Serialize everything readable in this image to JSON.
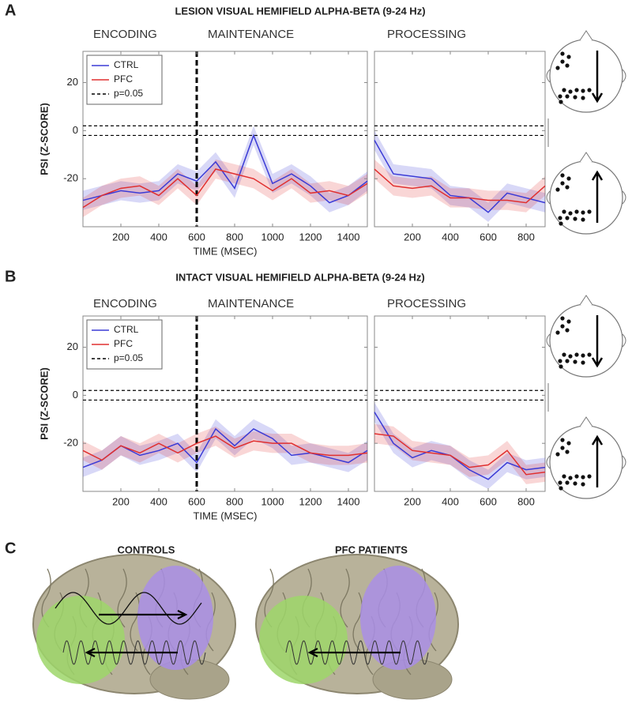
{
  "panel_labels": [
    "A",
    "B",
    "C"
  ],
  "chart_data": [
    {
      "type": "line",
      "title": "LESION VISUAL HEMIFIELD ALPHA-BETA (9-24 Hz)",
      "annotations": [
        "ENCODING",
        "MAINTENANCE"
      ],
      "ylabel": "PSI (Z-SCORE)",
      "xlabel": "TIME (MSEC)",
      "x": [
        0,
        100,
        200,
        300,
        400,
        500,
        600,
        700,
        800,
        900,
        1000,
        1100,
        1200,
        1300,
        1400,
        1500
      ],
      "series": [
        {
          "name": "CTRL",
          "color": "#3b3bd6",
          "band": 4,
          "values": [
            -29,
            -27,
            -25,
            -26,
            -25,
            -18,
            -21,
            -13,
            -24,
            -2,
            -22,
            -18,
            -23,
            -30,
            -27,
            -21
          ]
        },
        {
          "name": "PFC",
          "color": "#e03030",
          "band": 4,
          "values": [
            -32,
            -27,
            -24,
            -23,
            -27,
            -20,
            -27,
            -16,
            -18,
            -20,
            -25,
            -20,
            -26,
            -25,
            -27,
            -22
          ]
        }
      ],
      "hlines": {
        "name": "p=0.05",
        "values": [
          2,
          -2
        ]
      },
      "vline": 600,
      "legend": "upper left",
      "xlim": [
        0,
        1500
      ],
      "xticks": [
        200,
        400,
        600,
        800,
        1000,
        1200,
        1400
      ],
      "ylim": [
        -40,
        33
      ],
      "yticks": [
        -20,
        0,
        20
      ],
      "ytick_labels": true
    },
    {
      "type": "line",
      "annotations": [
        "PROCESSING"
      ],
      "x": [
        0,
        100,
        200,
        300,
        400,
        500,
        600,
        700,
        800,
        900
      ],
      "series": [
        {
          "color": "#3b3bd6",
          "band": 4,
          "values": [
            -4,
            -18,
            -19,
            -20,
            -27,
            -28,
            -34,
            -26,
            -28,
            -30
          ]
        },
        {
          "color": "#e03030",
          "band": 4,
          "values": [
            -16,
            -23,
            -24,
            -23,
            -28,
            -28,
            -29,
            -29,
            -30,
            -23
          ]
        }
      ],
      "hlines": {
        "values": [
          2,
          -2
        ]
      },
      "xlim": [
        0,
        900
      ],
      "xticks": [
        200,
        400,
        600,
        800
      ],
      "ylim": [
        -40,
        33
      ],
      "yticks": [
        -20,
        0,
        20
      ],
      "ytick_labels": false
    },
    {
      "type": "line",
      "title": "INTACT VISUAL HEMIFIELD ALPHA-BETA (9-24 Hz)",
      "annotations": [
        "ENCODING",
        "MAINTENANCE"
      ],
      "ylabel": "PSI (Z-SCORE)",
      "xlabel": "TIME (MSEC)",
      "x": [
        0,
        100,
        200,
        300,
        400,
        500,
        600,
        700,
        800,
        900,
        1000,
        1100,
        1200,
        1300,
        1400,
        1500
      ],
      "series": [
        {
          "name": "CTRL",
          "color": "#3b3bd6",
          "band": 4,
          "values": [
            -30,
            -27,
            -21,
            -25,
            -23,
            -20,
            -28,
            -14,
            -21,
            -14,
            -18,
            -25,
            -24,
            -26,
            -28,
            -23
          ]
        },
        {
          "name": "PFC",
          "color": "#e03030",
          "band": 4,
          "values": [
            -23,
            -27,
            -21,
            -24,
            -20,
            -24,
            -20,
            -17,
            -22,
            -19,
            -20,
            -20,
            -24,
            -25,
            -25,
            -24
          ]
        }
      ],
      "hlines": {
        "name": "p=0.05",
        "values": [
          2,
          -2
        ]
      },
      "vline": 600,
      "legend": "upper left",
      "xlim": [
        0,
        1500
      ],
      "xticks": [
        200,
        400,
        600,
        800,
        1000,
        1200,
        1400
      ],
      "ylim": [
        -40,
        33
      ],
      "yticks": [
        -20,
        0,
        20
      ],
      "ytick_labels": true
    },
    {
      "type": "line",
      "annotations": [
        "PROCESSING"
      ],
      "x": [
        0,
        100,
        200,
        300,
        400,
        500,
        600,
        700,
        800,
        900
      ],
      "series": [
        {
          "color": "#3b3bd6",
          "band": 4,
          "values": [
            -7,
            -20,
            -26,
            -23,
            -25,
            -31,
            -35,
            -28,
            -31,
            -30
          ]
        },
        {
          "color": "#e03030",
          "band": 4,
          "values": [
            -16,
            -17,
            -23,
            -24,
            -25,
            -30,
            -29,
            -23,
            -33,
            -32
          ]
        }
      ],
      "hlines": {
        "values": [
          2,
          -2
        ]
      },
      "xlim": [
        0,
        900
      ],
      "xticks": [
        200,
        400,
        600,
        800
      ],
      "ylim": [
        -40,
        33
      ],
      "yticks": [
        -20,
        0,
        20
      ],
      "ytick_labels": false
    }
  ],
  "panel_c": {
    "titles": [
      "CONTROLS",
      "PFC PATIENTS"
    ]
  }
}
